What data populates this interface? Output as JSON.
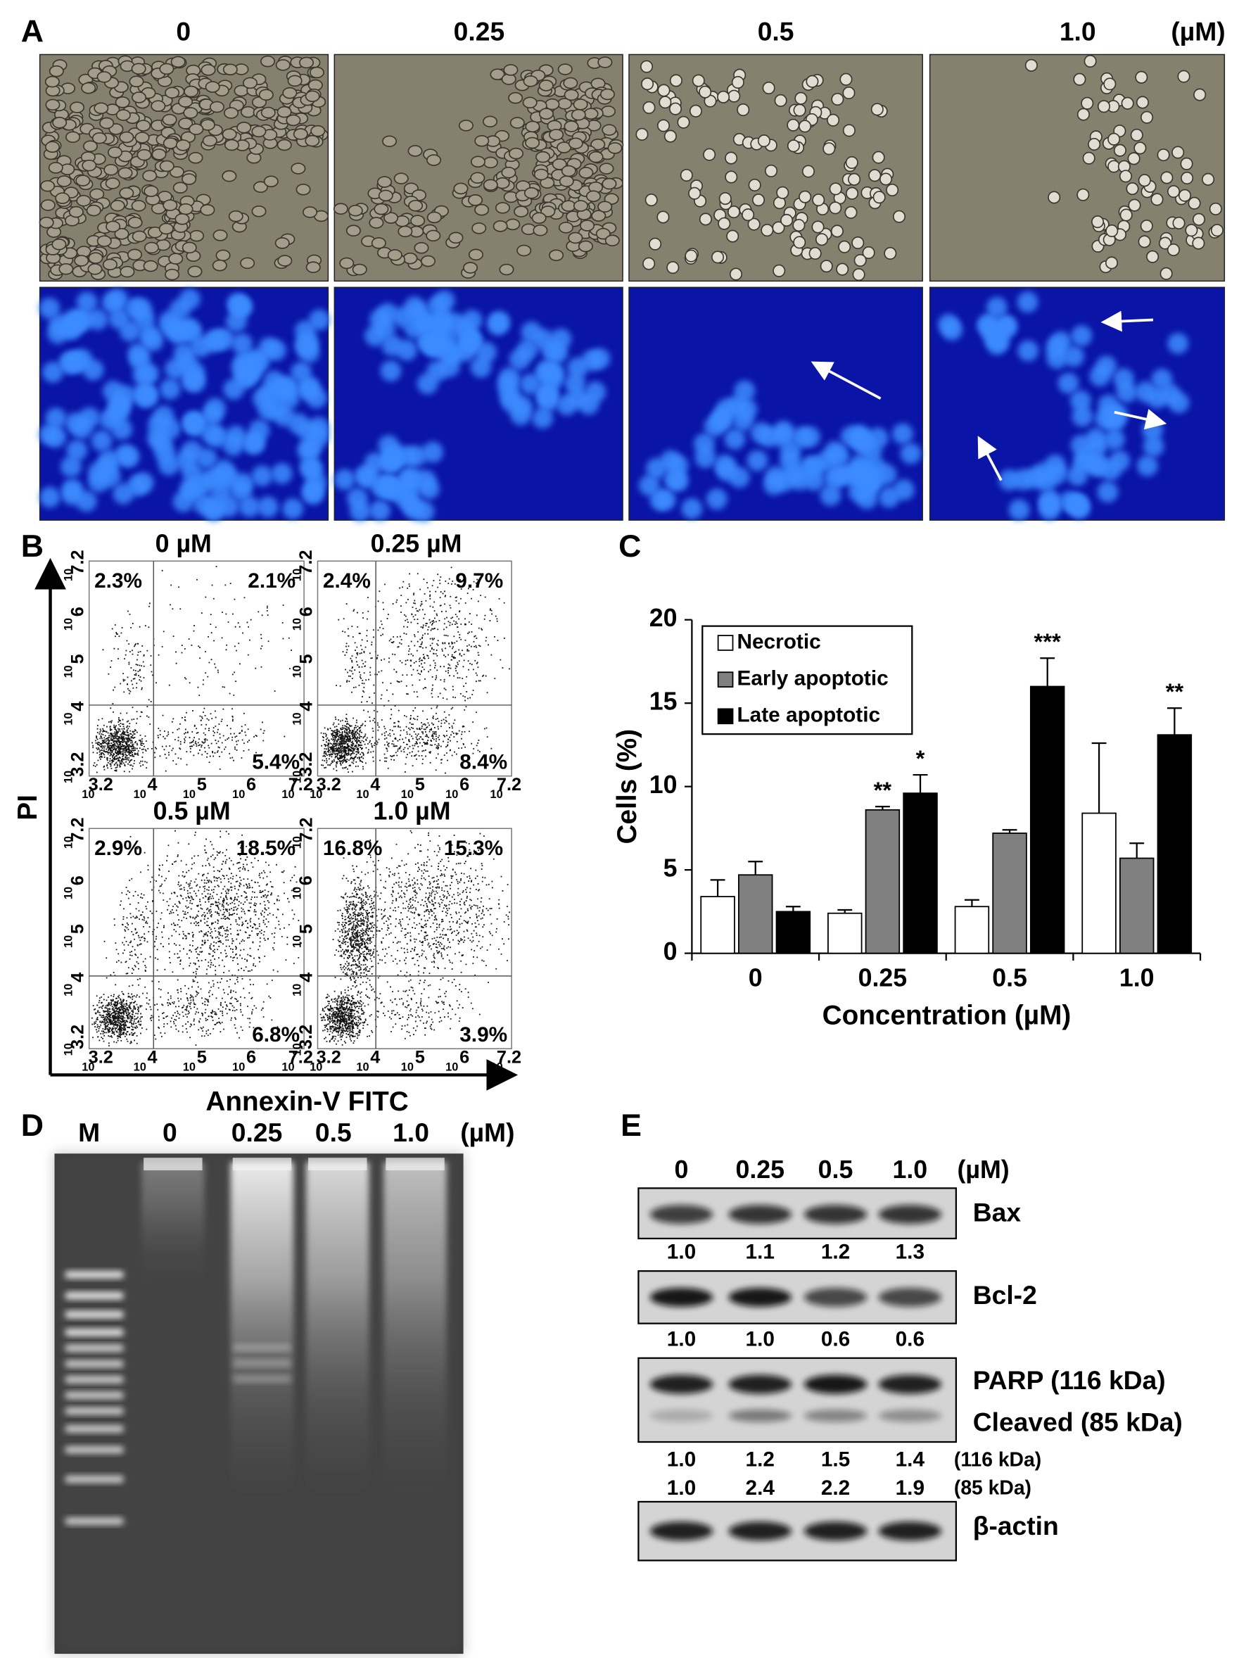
{
  "panel_labels": [
    "A",
    "B",
    "C",
    "D",
    "E"
  ],
  "panel_a": {
    "concentrations": [
      "0",
      "0.25",
      "0.5",
      "1.0"
    ],
    "unit": "(µM)"
  },
  "panel_b": {
    "plots": [
      {
        "title": "0 µM",
        "upper_left": "2.3%",
        "upper_right": "2.1%",
        "lower_right": "5.4%"
      },
      {
        "title": "0.25 µM",
        "upper_left": "2.4%",
        "upper_right": "9.7%",
        "lower_right": "8.4%"
      },
      {
        "title": "0.5 µM",
        "upper_left": "2.9%",
        "upper_right": "18.5%",
        "lower_right": "6.8%"
      },
      {
        "title": "1.0 µM",
        "upper_left": "16.8%",
        "upper_right": "15.3%",
        "lower_right": "3.9%"
      }
    ],
    "tick_base": "10",
    "tick_exponents": [
      "3.2",
      "4",
      "5",
      "6",
      "7.2"
    ],
    "y_label": "PI",
    "x_label": "Annexin-V FITC"
  },
  "chart_data": {
    "type": "bar",
    "categories": [
      "0",
      "0.25",
      "0.5",
      "1.0"
    ],
    "series": [
      {
        "name": "Necrotic",
        "color": "#ffffff",
        "values": [
          3.4,
          2.4,
          2.8,
          8.4
        ],
        "errors": [
          1.0,
          0.2,
          0.4,
          4.2
        ]
      },
      {
        "name": "Early apoptotic",
        "color": "#808080",
        "values": [
          4.7,
          8.6,
          7.2,
          5.7
        ],
        "errors": [
          0.8,
          0.2,
          0.2,
          0.9
        ],
        "significance": [
          null,
          "**",
          null,
          null
        ]
      },
      {
        "name": "Late apoptotic",
        "color": "#000000",
        "values": [
          2.5,
          9.6,
          16.0,
          13.1
        ],
        "errors": [
          0.3,
          1.1,
          1.7,
          1.6
        ],
        "significance": [
          null,
          "*",
          "***",
          "**"
        ]
      }
    ],
    "ylim": [
      0,
      20
    ],
    "yticks": [
      0,
      5,
      10,
      15,
      20
    ],
    "ylabel": "Cells (%)",
    "xlabel": "Concentration (µM)",
    "legend": "upper-left"
  },
  "panel_d": {
    "lanes": [
      "M",
      "0",
      "0.25",
      "0.5",
      "1.0"
    ],
    "unit": "(µM)"
  },
  "panel_e": {
    "lanes": [
      "0",
      "0.25",
      "0.5",
      "1.0"
    ],
    "unit": "(µM)",
    "blots": [
      {
        "labels": [
          "Bax"
        ],
        "ratio_rows": [
          {
            "values": [
              "1.0",
              "1.1",
              "1.2",
              "1.3"
            ]
          }
        ]
      },
      {
        "labels": [
          "Bcl-2"
        ],
        "ratio_rows": [
          {
            "values": [
              "1.0",
              "1.0",
              "0.6",
              "0.6"
            ]
          }
        ]
      },
      {
        "labels": [
          "PARP (116 kDa)",
          "Cleaved (85 kDa)"
        ],
        "ratio_rows": [
          {
            "values": [
              "1.0",
              "1.2",
              "1.5",
              "1.4"
            ],
            "unit": "(116 kDa)"
          },
          {
            "values": [
              "1.0",
              "2.4",
              "2.2",
              "1.9"
            ],
            "unit": "(85 kDa)"
          }
        ]
      },
      {
        "labels": [
          "β-actin"
        ]
      }
    ]
  }
}
